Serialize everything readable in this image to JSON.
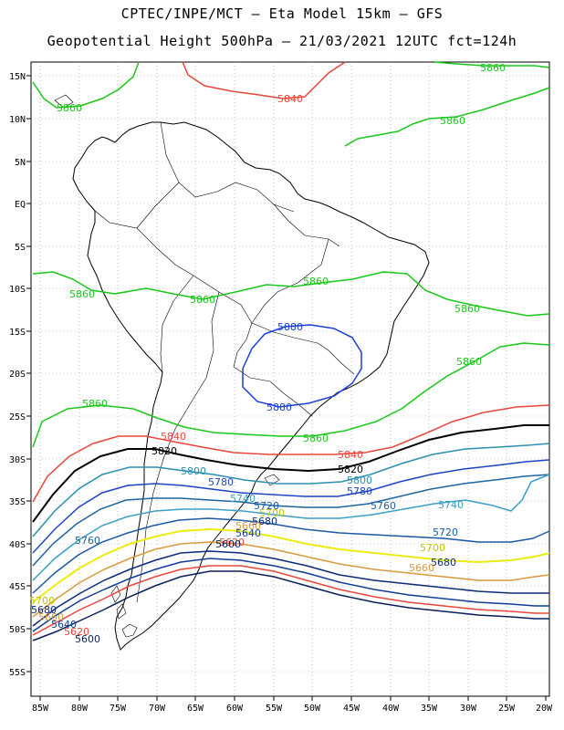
{
  "header": {
    "line1": "CPTEC/INPE/MCT –  Eta Model 15km – GFS",
    "line2": "Geopotential Height 500hPa – 21/03/2021 12UTC fct=124h"
  },
  "axes": {
    "lon_labels": [
      "85W",
      "80W",
      "75W",
      "70W",
      "65W",
      "60W",
      "55W",
      "50W",
      "45W",
      "40W",
      "35W",
      "30W",
      "25W",
      "20W"
    ],
    "lat_labels": [
      "15N",
      "10N",
      "5N",
      "EQ",
      "5S",
      "10S",
      "15S",
      "20S",
      "25S",
      "30S",
      "35S",
      "40S",
      "45S",
      "50S",
      "55S"
    ]
  },
  "contours": [
    {
      "level": 5880,
      "label": "5880",
      "color": "#1a3fd9"
    },
    {
      "level": 5860,
      "label": "5860",
      "color": "#19c819"
    },
    {
      "level": 5840,
      "label": "5840",
      "color": "#e8463c"
    },
    {
      "level": 5820,
      "label": "5820",
      "color": "#000000"
    },
    {
      "level": 5800,
      "label": "5800",
      "color": "#2a8fb0"
    },
    {
      "level": 5780,
      "label": "5780",
      "color": "#1e44c8"
    },
    {
      "level": 5760,
      "label": "5760",
      "color": "#1e64a0"
    },
    {
      "level": 5740,
      "label": "5740",
      "color": "#3aa0c8"
    },
    {
      "level": 5720,
      "label": "5720",
      "color": "#1c5aa8"
    },
    {
      "level": 5700,
      "label": "5700",
      "color": "#ecec10"
    },
    {
      "level": 5680,
      "label": "5680",
      "color": "#d89a3c"
    },
    {
      "level": 5660,
      "label": "5660",
      "color": "#0a2a7a"
    },
    {
      "level": 5640,
      "label": "5640",
      "color": "#123c96"
    },
    {
      "level": 5620,
      "label": "5620",
      "color": "#e8463c"
    },
    {
      "level": 5600,
      "label": "5600",
      "color": "#0a1e5a"
    }
  ]
}
